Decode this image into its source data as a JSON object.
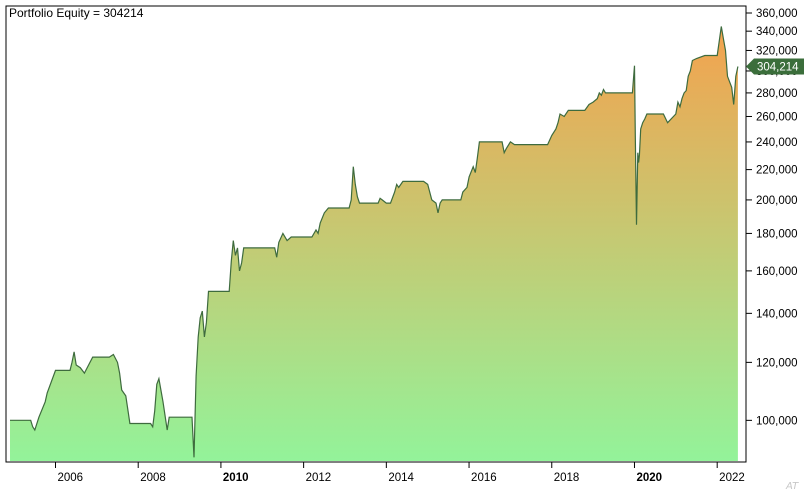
{
  "title": "Portfolio Equity = 304214",
  "watermark": "AT",
  "colors": {
    "line": "#3e6b3e",
    "fill_top": "#f4a24e",
    "fill_bottom": "#93f39a",
    "value_tag": "#3b6e3b",
    "axis": "#000000"
  },
  "chart_data": {
    "type": "area",
    "title": "Portfolio Equity = 304214",
    "xlabel": "",
    "ylabel": "",
    "y_scale": "log",
    "ylim": [
      88000,
      368000
    ],
    "xlim": [
      2004.9,
      2022.6
    ],
    "grid": false,
    "x_ticks": [
      {
        "value": 2006,
        "label": "2006",
        "bold": false
      },
      {
        "value": 2008,
        "label": "2008",
        "bold": false
      },
      {
        "value": 2010,
        "label": "2010",
        "bold": true
      },
      {
        "value": 2012,
        "label": "2012",
        "bold": false
      },
      {
        "value": 2014,
        "label": "2014",
        "bold": false
      },
      {
        "value": 2016,
        "label": "2016",
        "bold": false
      },
      {
        "value": 2018,
        "label": "2018",
        "bold": false
      },
      {
        "value": 2020,
        "label": "2020",
        "bold": true
      },
      {
        "value": 2022,
        "label": "2022",
        "bold": false
      }
    ],
    "y_ticks": [
      {
        "value": 100000,
        "label": "100,000"
      },
      {
        "value": 120000,
        "label": "120,000"
      },
      {
        "value": 140000,
        "label": "140,000"
      },
      {
        "value": 160000,
        "label": "160,000"
      },
      {
        "value": 180000,
        "label": "180,000"
      },
      {
        "value": 200000,
        "label": "200,000"
      },
      {
        "value": 220000,
        "label": "220,000"
      },
      {
        "value": 240000,
        "label": "240,000"
      },
      {
        "value": 260000,
        "label": "260,000"
      },
      {
        "value": 280000,
        "label": "280,000"
      },
      {
        "value": 300000,
        "label": "300,000"
      },
      {
        "value": 320000,
        "label": "320,000"
      },
      {
        "value": 340000,
        "label": "340,000"
      },
      {
        "value": 360000,
        "label": "360,000"
      }
    ],
    "last_value_label": "304,214",
    "last_value": 304214,
    "series": [
      {
        "x": [
          2004.9,
          2005.4,
          2005.45,
          2005.5,
          2005.6,
          2005.75,
          2005.8,
          2006.0,
          2006.2,
          2006.35,
          2006.4,
          2006.45,
          2006.5,
          2006.6,
          2006.7,
          2006.8,
          2006.9,
          2007.0,
          2007.2,
          2007.3,
          2007.4,
          2007.5,
          2007.55,
          2007.6,
          2007.7,
          2007.8,
          2007.85,
          2008.0,
          2008.1,
          2008.15,
          2008.2,
          2008.25,
          2008.3,
          2008.35,
          2008.4,
          2008.45,
          2008.5,
          2008.55,
          2008.6,
          2008.7,
          2008.75,
          2009.0,
          2009.3,
          2009.35,
          2009.4,
          2009.45,
          2009.5,
          2009.55,
          2009.6,
          2009.65,
          2009.7,
          2009.75,
          2009.8,
          2009.85,
          2009.9,
          2010.0,
          2010.2,
          2010.25,
          2010.3,
          2010.35,
          2010.4,
          2010.45,
          2010.5,
          2010.55,
          2010.6,
          2010.7,
          2010.8,
          2011.0,
          2011.3,
          2011.35,
          2011.4,
          2011.5,
          2011.6,
          2011.7,
          2011.75,
          2012.0,
          2012.2,
          2012.3,
          2012.35,
          2012.4,
          2012.5,
          2012.6,
          2012.7,
          2012.8,
          2013.0,
          2013.1,
          2013.15,
          2013.2,
          2013.25,
          2013.3,
          2013.35,
          2013.5,
          2013.8,
          2013.85,
          2013.9,
          2014.0,
          2014.1,
          2014.2,
          2014.25,
          2014.3,
          2014.4,
          2014.5,
          2014.6,
          2014.8,
          2014.9,
          2015.0,
          2015.1,
          2015.2,
          2015.25,
          2015.3,
          2015.35,
          2015.4,
          2015.5,
          2015.8,
          2015.85,
          2015.95,
          2016.0,
          2016.1,
          2016.15,
          2016.2,
          2016.25,
          2016.3,
          2016.4,
          2016.6,
          2016.8,
          2016.85,
          2016.9,
          2017.0,
          2017.1,
          2017.2,
          2017.3,
          2017.5,
          2017.8,
          2017.9,
          2018.0,
          2018.1,
          2018.15,
          2018.2,
          2018.3,
          2018.4,
          2018.5,
          2018.6,
          2018.8,
          2018.9,
          2019.0,
          2019.1,
          2019.15,
          2019.2,
          2019.25,
          2019.3,
          2019.4,
          2019.6,
          2019.8,
          2019.9,
          2019.95,
          2020.0,
          2020.02,
          2020.05,
          2020.08,
          2020.1,
          2020.12,
          2020.15,
          2020.2,
          2020.25,
          2020.3,
          2020.35,
          2020.4,
          2020.5,
          2020.6,
          2020.7,
          2020.8,
          2021.0,
          2021.05,
          2021.1,
          2021.15,
          2021.2,
          2021.25,
          2021.3,
          2021.35,
          2021.4,
          2021.5,
          2021.7,
          2021.9,
          2022.0,
          2022.05,
          2022.1,
          2022.15,
          2022.2,
          2022.25,
          2022.3,
          2022.35,
          2022.4,
          2022.45,
          2022.5
        ],
        "values": [
          100000,
          100000,
          98000,
          97000,
          101000,
          106000,
          109000,
          117000,
          117000,
          117000,
          120000,
          124000,
          119000,
          118000,
          116000,
          119000,
          122000,
          122000,
          122000,
          122000,
          123000,
          120000,
          116000,
          110000,
          108000,
          99000,
          99000,
          99000,
          99000,
          99000,
          99000,
          99000,
          99000,
          98000,
          103000,
          112000,
          114000,
          110000,
          106000,
          97000,
          101000,
          101000,
          101000,
          89000,
          115000,
          130000,
          138000,
          141000,
          130000,
          136000,
          150000,
          150000,
          150000,
          150000,
          150000,
          150000,
          150000,
          165000,
          176000,
          168000,
          172000,
          160000,
          164000,
          172000,
          172000,
          172000,
          172000,
          172000,
          172000,
          167000,
          175000,
          180000,
          176000,
          178000,
          178000,
          178000,
          178000,
          182000,
          180000,
          186000,
          192000,
          195000,
          195000,
          195000,
          195000,
          195000,
          200000,
          222000,
          210000,
          202000,
          198000,
          198000,
          198000,
          201000,
          200000,
          198000,
          198000,
          205000,
          210000,
          208000,
          212000,
          212000,
          212000,
          212000,
          212000,
          210000,
          200000,
          198000,
          192000,
          198000,
          200000,
          200000,
          200000,
          200000,
          205000,
          208000,
          215000,
          222000,
          218000,
          228000,
          240000,
          240000,
          240000,
          240000,
          240000,
          232000,
          235000,
          240000,
          238000,
          238000,
          238000,
          238000,
          238000,
          238000,
          245000,
          250000,
          255000,
          262000,
          260000,
          265000,
          265000,
          265000,
          265000,
          270000,
          272000,
          275000,
          280000,
          278000,
          283000,
          280000,
          280000,
          280000,
          280000,
          280000,
          280000,
          305000,
          245000,
          185000,
          232000,
          225000,
          230000,
          250000,
          255000,
          258000,
          262000,
          262000,
          262000,
          262000,
          262000,
          262000,
          255000,
          262000,
          272000,
          268000,
          275000,
          280000,
          282000,
          295000,
          300000,
          310000,
          312000,
          315000,
          315000,
          315000,
          330000,
          345000,
          332000,
          320000,
          295000,
          290000,
          285000,
          270000,
          295000,
          304214
        ]
      }
    ]
  }
}
